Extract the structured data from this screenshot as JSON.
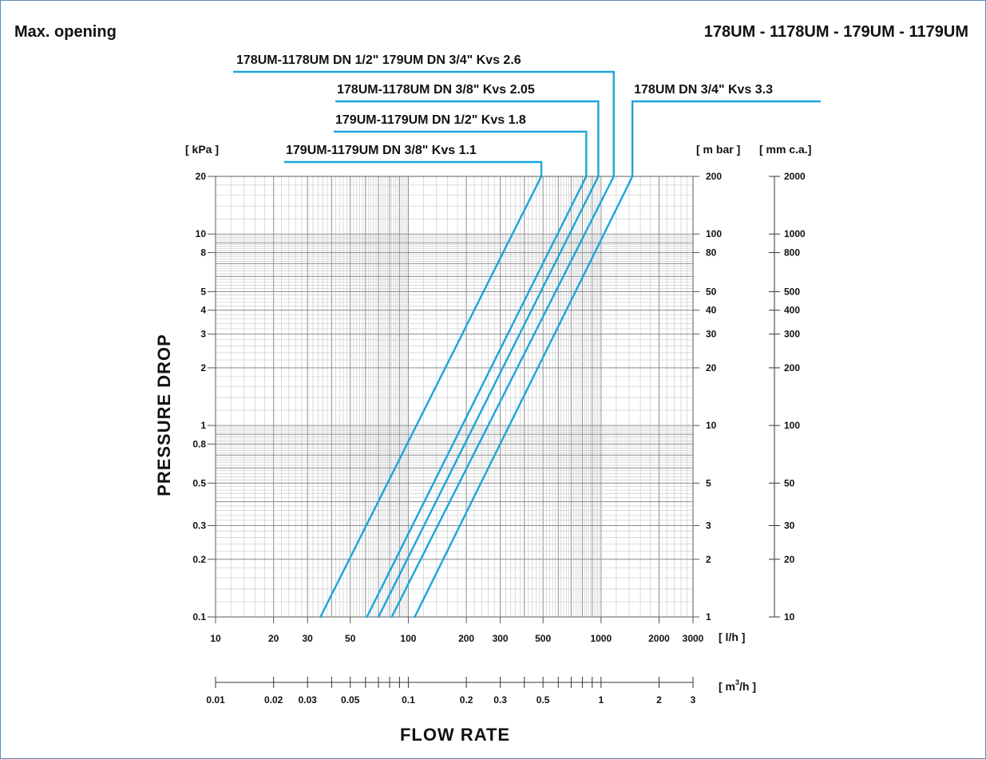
{
  "header": {
    "left": "Max. opening",
    "right": "178UM - 1178UM - 179UM - 1179UM"
  },
  "colors": {
    "series": "#1aa6d9",
    "grid_major": "#8c8c8c",
    "grid_minor": "#c4c4c4",
    "frame": "#5b8db8"
  },
  "chart_data": {
    "type": "line",
    "xlabel": "FLOW RATE",
    "ylabel": "PRESSURE DROP",
    "x_scale": "log",
    "y_scale": "log",
    "xlim": [
      10,
      3000
    ],
    "ylim": [
      0.1,
      20
    ],
    "grid": true,
    "x_unit": "[ l/h ]",
    "y_unit": "[ kPa ]",
    "x_ticks": [
      {
        "v": 10,
        "label": "10"
      },
      {
        "v": 20,
        "label": "20"
      },
      {
        "v": 30,
        "label": "30"
      },
      {
        "v": 50,
        "label": "50"
      },
      {
        "v": 100,
        "label": "100"
      },
      {
        "v": 200,
        "label": "200"
      },
      {
        "v": 300,
        "label": "300"
      },
      {
        "v": 500,
        "label": "500"
      },
      {
        "v": 1000,
        "label": "1000"
      },
      {
        "v": 2000,
        "label": "2000"
      },
      {
        "v": 3000,
        "label": "3000"
      }
    ],
    "y_ticks": [
      {
        "v": 0.1,
        "label": "0.1"
      },
      {
        "v": 0.2,
        "label": "0.2"
      },
      {
        "v": 0.3,
        "label": "0.3"
      },
      {
        "v": 0.5,
        "label": "0.5"
      },
      {
        "v": 0.8,
        "label": "0.8"
      },
      {
        "v": 1,
        "label": "1"
      },
      {
        "v": 2,
        "label": "2"
      },
      {
        "v": 3,
        "label": "3"
      },
      {
        "v": 4,
        "label": "4"
      },
      {
        "v": 5,
        "label": "5"
      },
      {
        "v": 8,
        "label": "8"
      },
      {
        "v": 10,
        "label": "10"
      },
      {
        "v": 20,
        "label": "20"
      }
    ],
    "secondary_y": {
      "unit": "[ m bar ]",
      "ticks": [
        {
          "v": 0.1,
          "label": "1"
        },
        {
          "v": 0.2,
          "label": "2"
        },
        {
          "v": 0.3,
          "label": "3"
        },
        {
          "v": 0.5,
          "label": "5"
        },
        {
          "v": 1,
          "label": "10"
        },
        {
          "v": 2,
          "label": "20"
        },
        {
          "v": 3,
          "label": "30"
        },
        {
          "v": 4,
          "label": "40"
        },
        {
          "v": 5,
          "label": "50"
        },
        {
          "v": 8,
          "label": "80"
        },
        {
          "v": 10,
          "label": "100"
        },
        {
          "v": 20,
          "label": "200"
        }
      ]
    },
    "tertiary_y": {
      "unit": "[ mm c.a.]",
      "ticks": [
        {
          "v": 0.1,
          "label": "10"
        },
        {
          "v": 0.2,
          "label": "20"
        },
        {
          "v": 0.3,
          "label": "30"
        },
        {
          "v": 0.5,
          "label": "50"
        },
        {
          "v": 1,
          "label": "100"
        },
        {
          "v": 2,
          "label": "200"
        },
        {
          "v": 3,
          "label": "300"
        },
        {
          "v": 4,
          "label": "400"
        },
        {
          "v": 5,
          "label": "500"
        },
        {
          "v": 8,
          "label": "800"
        },
        {
          "v": 10,
          "label": "1000"
        },
        {
          "v": 20,
          "label": "2000"
        }
      ]
    },
    "secondary_x": {
      "unit_main": "[ m",
      "unit_sup": "3",
      "unit_tail": "/h ]",
      "ticks": [
        {
          "v": 0.01,
          "label": "0.01"
        },
        {
          "v": 0.02,
          "label": "0.02"
        },
        {
          "v": 0.03,
          "label": "0.03"
        },
        {
          "v": 0.04,
          "label": ""
        },
        {
          "v": 0.05,
          "label": "0.05"
        },
        {
          "v": 0.06,
          "label": ""
        },
        {
          "v": 0.07,
          "label": ""
        },
        {
          "v": 0.08,
          "label": ""
        },
        {
          "v": 0.09,
          "label": ""
        },
        {
          "v": 0.1,
          "label": "0.1"
        },
        {
          "v": 0.2,
          "label": "0.2"
        },
        {
          "v": 0.3,
          "label": "0.3"
        },
        {
          "v": 0.4,
          "label": ""
        },
        {
          "v": 0.5,
          "label": "0.5"
        },
        {
          "v": 0.6,
          "label": ""
        },
        {
          "v": 0.7,
          "label": ""
        },
        {
          "v": 0.8,
          "label": ""
        },
        {
          "v": 0.9,
          "label": ""
        },
        {
          "v": 1,
          "label": "1"
        },
        {
          "v": 2,
          "label": "2"
        },
        {
          "v": 3,
          "label": "3"
        }
      ]
    },
    "series": [
      {
        "name": "179UM-1179UM DN 3/8\" Kvs 1.1",
        "x": [
          35,
          490
        ],
        "y": [
          0.1,
          20
        ]
      },
      {
        "name": "179UM-1179UM DN 1/2\" Kvs 1.8",
        "x": [
          61,
          838
        ],
        "y": [
          0.1,
          20
        ]
      },
      {
        "name": "178UM-1178UM DN 3/8\" Kvs 2.05",
        "x": [
          70,
          968
        ],
        "y": [
          0.1,
          20
        ]
      },
      {
        "name": "178UM-1178UM DN 1/2\"  179UM DN 3/4\" Kvs 2.6",
        "x": [
          82,
          1164
        ],
        "y": [
          0.1,
          20
        ]
      },
      {
        "name": "178UM DN 3/4\" Kvs 3.3",
        "x": [
          108,
          1455
        ],
        "y": [
          0.1,
          20
        ]
      }
    ]
  }
}
